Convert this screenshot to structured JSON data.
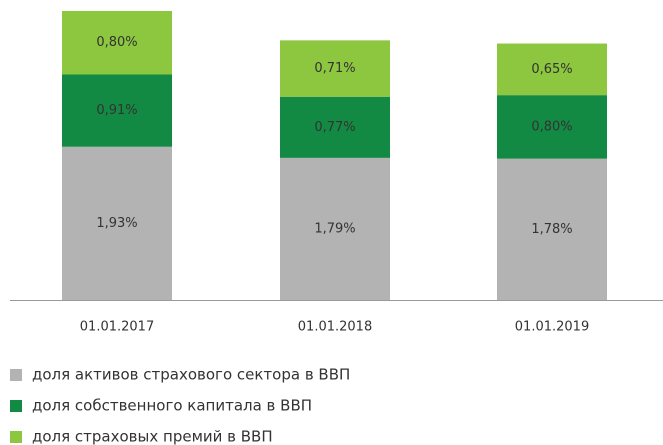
{
  "chart_data": {
    "type": "stacked_bar",
    "categories": [
      "01.01.2017",
      "01.01.2018",
      "01.01.2019"
    ],
    "series": [
      {
        "name": "доля активов страхового сектора в ВВП",
        "color": "#b3b3b3",
        "values": [
          1.93,
          1.79,
          1.78
        ],
        "value_labels": [
          "1,93%",
          "1,79%",
          "1,78%"
        ]
      },
      {
        "name": "доля собственного капитала в ВВП",
        "color": "#138a43",
        "values": [
          0.91,
          0.77,
          0.8
        ],
        "value_labels": [
          "0,91%",
          "0,77%",
          "0,80%"
        ]
      },
      {
        "name": "доля страховых премий в ВВП",
        "color": "#8dc63f",
        "values": [
          0.8,
          0.71,
          0.65
        ],
        "value_labels": [
          "0,80%",
          "0,71%",
          "0,65%"
        ]
      }
    ]
  }
}
